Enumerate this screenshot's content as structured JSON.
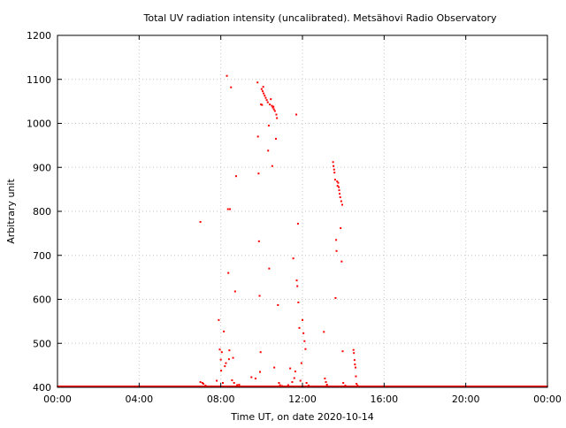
{
  "chart_data": {
    "type": "scatter",
    "title": "Total UV radiation intensity (uncalibrated). Metsähovi Radio Observatory",
    "xlabel": "Time UT, on date 2020-10-14",
    "ylabel": "Arbitrary unit",
    "xlim": [
      0,
      24
    ],
    "ylim": [
      400,
      1200
    ],
    "x_unit": "hours UT",
    "xticks": [
      0,
      4,
      8,
      12,
      16,
      20,
      24
    ],
    "xtick_labels": [
      "00:00",
      "04:00",
      "08:00",
      "12:00",
      "16:00",
      "20:00",
      "00:00"
    ],
    "yticks": [
      400,
      500,
      600,
      700,
      800,
      900,
      1000,
      1100,
      1200
    ],
    "ytick_labels": [
      "400",
      "500",
      "600",
      "700",
      "800",
      "900",
      "1000",
      "1100",
      "1200"
    ],
    "grid": true,
    "marker_color": "#ff0000",
    "baseline": {
      "y": 401,
      "x_from": 0,
      "x_to": 24,
      "description": "dense points along the lower edge"
    },
    "series": [
      {
        "name": "",
        "points": [
          [
            7.0,
            776
          ],
          [
            7.0,
            412
          ],
          [
            7.1,
            410
          ],
          [
            7.15,
            408
          ],
          [
            7.25,
            404
          ],
          [
            7.8,
            415
          ],
          [
            7.9,
            553
          ],
          [
            7.95,
            486
          ],
          [
            8.0,
            463
          ],
          [
            8.02,
            438
          ],
          [
            8.05,
            480
          ],
          [
            8.1,
            410
          ],
          [
            8.15,
            527
          ],
          [
            8.2,
            448
          ],
          [
            8.25,
            455
          ],
          [
            8.3,
            1108
          ],
          [
            8.35,
            805
          ],
          [
            8.37,
            660
          ],
          [
            8.4,
            464
          ],
          [
            8.42,
            484
          ],
          [
            8.45,
            805
          ],
          [
            8.5,
            1082
          ],
          [
            8.55,
            416
          ],
          [
            8.6,
            467
          ],
          [
            8.65,
            410
          ],
          [
            8.7,
            618
          ],
          [
            8.75,
            880
          ],
          [
            8.8,
            405
          ],
          [
            8.85,
            402
          ],
          [
            8.9,
            406
          ],
          [
            9.5,
            423
          ],
          [
            9.7,
            420
          ],
          [
            9.8,
            1093
          ],
          [
            9.82,
            970
          ],
          [
            9.85,
            886
          ],
          [
            9.87,
            732
          ],
          [
            9.9,
            608
          ],
          [
            9.92,
            435
          ],
          [
            9.95,
            480
          ],
          [
            9.97,
            1043
          ],
          [
            10.0,
            1078
          ],
          [
            10.02,
            1042
          ],
          [
            10.05,
            1073
          ],
          [
            10.08,
            1083
          ],
          [
            10.1,
            1068
          ],
          [
            10.15,
            1063
          ],
          [
            10.2,
            1058
          ],
          [
            10.25,
            1053
          ],
          [
            10.3,
            1048
          ],
          [
            10.32,
            938
          ],
          [
            10.35,
            995
          ],
          [
            10.37,
            670
          ],
          [
            10.4,
            1043
          ],
          [
            10.45,
            1055
          ],
          [
            10.5,
            1040
          ],
          [
            10.52,
            903
          ],
          [
            10.55,
            1036
          ],
          [
            10.58,
            1038
          ],
          [
            10.6,
            1032
          ],
          [
            10.62,
            445
          ],
          [
            10.65,
            1028
          ],
          [
            10.7,
            965
          ],
          [
            10.72,
            1020
          ],
          [
            10.75,
            1012
          ],
          [
            10.8,
            587
          ],
          [
            10.85,
            410
          ],
          [
            10.9,
            405
          ],
          [
            11.0,
            403
          ],
          [
            11.3,
            405
          ],
          [
            11.4,
            443
          ],
          [
            11.5,
            412
          ],
          [
            11.55,
            693
          ],
          [
            11.6,
            421
          ],
          [
            11.65,
            436
          ],
          [
            11.7,
            1020
          ],
          [
            11.72,
            643
          ],
          [
            11.75,
            630
          ],
          [
            11.78,
            772
          ],
          [
            11.8,
            593
          ],
          [
            11.85,
            535
          ],
          [
            11.9,
            415
          ],
          [
            11.95,
            455
          ],
          [
            12.0,
            553
          ],
          [
            12.05,
            523
          ],
          [
            12.1,
            505
          ],
          [
            12.15,
            487
          ],
          [
            12.2,
            410
          ],
          [
            12.3,
            404
          ],
          [
            13.05,
            526
          ],
          [
            13.1,
            420
          ],
          [
            13.15,
            412
          ],
          [
            13.2,
            406
          ],
          [
            13.5,
            912
          ],
          [
            13.52,
            903
          ],
          [
            13.55,
            895
          ],
          [
            13.57,
            888
          ],
          [
            13.6,
            872
          ],
          [
            13.62,
            603
          ],
          [
            13.65,
            735
          ],
          [
            13.67,
            710
          ],
          [
            13.7,
            868
          ],
          [
            13.72,
            858
          ],
          [
            13.75,
            865
          ],
          [
            13.78,
            855
          ],
          [
            13.8,
            848
          ],
          [
            13.82,
            840
          ],
          [
            13.85,
            832
          ],
          [
            13.87,
            762
          ],
          [
            13.9,
            823
          ],
          [
            13.92,
            686
          ],
          [
            13.95,
            815
          ],
          [
            13.97,
            482
          ],
          [
            14.0,
            410
          ],
          [
            14.1,
            404
          ],
          [
            14.5,
            485
          ],
          [
            14.52,
            478
          ],
          [
            14.55,
            462
          ],
          [
            14.57,
            452
          ],
          [
            14.6,
            445
          ],
          [
            14.62,
            425
          ],
          [
            14.65,
            408
          ],
          [
            14.7,
            404
          ]
        ]
      }
    ]
  }
}
